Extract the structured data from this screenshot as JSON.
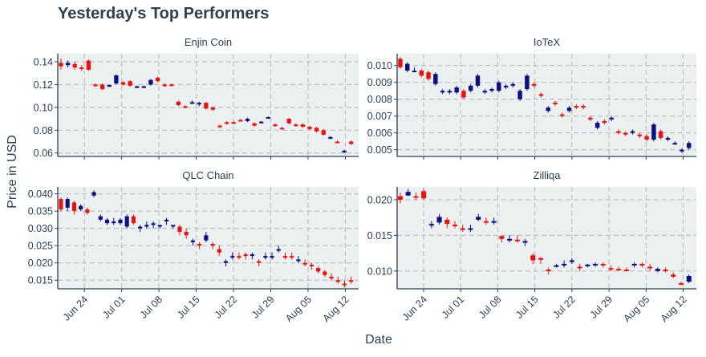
{
  "title": "Yesterday's Top Performers",
  "xlabel": "Date",
  "ylabel": "Price in USD",
  "colors": {
    "up": "#0a0f82",
    "down": "#e8130e",
    "panel_bg": "#ecf0f1",
    "text": "#2a3f54"
  },
  "x_ticks": [
    "Jun 24",
    "Jul 01",
    "Jul 08",
    "Jul 15",
    "Jul 22",
    "Jul 29",
    "Aug 05",
    "Aug 12"
  ],
  "chart_data": [
    {
      "type": "candlestick",
      "title": "Enjin Coin",
      "x_start": "2019-06-19",
      "x_range_days": [
        0,
        56.5
      ],
      "ylim": [
        0.057,
        0.147
      ],
      "y_ticks": [
        0.06,
        0.08,
        0.1,
        0.12,
        0.14
      ],
      "y_tick_labels": [
        "0.06",
        "0.08",
        "0.10",
        "0.12",
        "0.14"
      ],
      "candles": [
        [
          0.139,
          0.136,
          0.143,
          0.133
        ],
        [
          0.137,
          0.139,
          0.141,
          0.135
        ],
        [
          0.138,
          0.135,
          0.14,
          0.133
        ],
        [
          0.135,
          0.134,
          0.137,
          0.132
        ],
        [
          0.141,
          0.133,
          0.142,
          0.132
        ],
        [
          0.12,
          0.1195,
          0.121,
          0.118
        ],
        [
          0.12,
          0.116,
          0.121,
          0.115
        ],
        [
          0.119,
          0.1195,
          0.12,
          0.118
        ],
        [
          0.121,
          0.128,
          0.129,
          0.12
        ],
        [
          0.122,
          0.12,
          0.123,
          0.119
        ],
        [
          0.123,
          0.119,
          0.124,
          0.118
        ],
        [
          0.118,
          0.1185,
          0.119,
          0.117
        ],
        [
          0.118,
          0.1185,
          0.119,
          0.117
        ],
        [
          0.12,
          0.124,
          0.125,
          0.119
        ],
        [
          0.126,
          0.123,
          0.127,
          0.122
        ],
        [
          0.12,
          0.119,
          0.121,
          0.118
        ],
        [
          0.12,
          0.1195,
          0.121,
          0.119
        ],
        [
          0.105,
          0.102,
          0.106,
          0.101
        ],
        [
          0.101,
          0.1,
          0.102,
          0.099
        ],
        [
          0.104,
          0.1045,
          0.106,
          0.103
        ],
        [
          0.103,
          0.104,
          0.105,
          0.101
        ],
        [
          0.104,
          0.099,
          0.105,
          0.098
        ],
        [
          0.1,
          0.098,
          0.101,
          0.097
        ],
        [
          0.084,
          0.083,
          0.085,
          0.082
        ],
        [
          0.087,
          0.086,
          0.088,
          0.085
        ],
        [
          0.087,
          0.0865,
          0.088,
          0.086
        ],
        [
          0.089,
          0.0885,
          0.09,
          0.088
        ],
        [
          0.088,
          0.09,
          0.091,
          0.087
        ],
        [
          0.086,
          0.084,
          0.087,
          0.083
        ],
        [
          0.0865,
          0.0875,
          0.088,
          0.086
        ],
        [
          0.0905,
          0.0915,
          0.092,
          0.09
        ],
        [
          0.085,
          0.0845,
          0.086,
          0.083
        ],
        [
          0.082,
          0.0815,
          0.083,
          0.081
        ],
        [
          0.09,
          0.086,
          0.091,
          0.085
        ],
        [
          0.085,
          0.084,
          0.086,
          0.083
        ],
        [
          0.085,
          0.083,
          0.086,
          0.082
        ],
        [
          0.083,
          0.081,
          0.084,
          0.08
        ],
        [
          0.082,
          0.079,
          0.083,
          0.078
        ],
        [
          0.08,
          0.076,
          0.081,
          0.075
        ],
        [
          0.073,
          0.074,
          0.075,
          0.072
        ],
        [
          0.07,
          0.0695,
          0.071,
          0.069
        ],
        [
          0.0615,
          0.062,
          0.063,
          0.06
        ],
        [
          0.07,
          0.068,
          0.071,
          0.067
        ]
      ]
    },
    {
      "type": "candlestick",
      "title": "IoTeX",
      "x_start": "2019-06-19",
      "x_range_days": [
        0,
        56.5
      ],
      "ylim": [
        0.0046,
        0.0107
      ],
      "y_ticks": [
        0.005,
        0.006,
        0.007,
        0.008,
        0.009,
        0.01
      ],
      "y_tick_labels": [
        "0.005",
        "0.006",
        "0.007",
        "0.008",
        "0.009",
        "0.010"
      ],
      "candles": [
        [
          0.0104,
          0.0099,
          0.0105,
          0.0098
        ],
        [
          0.0097,
          0.0101,
          0.0102,
          0.0096
        ],
        [
          0.0097,
          0.0097,
          0.0099,
          0.0096
        ],
        [
          0.0097,
          0.0094,
          0.0098,
          0.0093
        ],
        [
          0.0096,
          0.0092,
          0.0097,
          0.0091
        ],
        [
          0.0089,
          0.0095,
          0.0096,
          0.0088
        ],
        [
          0.0084,
          0.0085,
          0.0086,
          0.0083
        ],
        [
          0.0084,
          0.0085,
          0.0086,
          0.0083
        ],
        [
          0.0084,
          0.0087,
          0.0088,
          0.0083
        ],
        [
          0.0085,
          0.0081,
          0.0086,
          0.008
        ],
        [
          0.0085,
          0.0088,
          0.0089,
          0.0084
        ],
        [
          0.0088,
          0.0094,
          0.0095,
          0.0087
        ],
        [
          0.0084,
          0.0085,
          0.0086,
          0.0083
        ],
        [
          0.0085,
          0.0086,
          0.0087,
          0.0084
        ],
        [
          0.0085,
          0.009,
          0.0091,
          0.0084
        ],
        [
          0.0087,
          0.0088,
          0.0089,
          0.0086
        ],
        [
          0.0088,
          0.0089,
          0.009,
          0.0087
        ],
        [
          0.008,
          0.0085,
          0.0086,
          0.0079
        ],
        [
          0.0086,
          0.0094,
          0.0095,
          0.0085
        ],
        [
          0.0089,
          0.0088,
          0.009,
          0.0087
        ],
        [
          0.0083,
          0.0082,
          0.0084,
          0.0081
        ],
        [
          0.0073,
          0.0075,
          0.0076,
          0.0072
        ],
        [
          0.0078,
          0.0077,
          0.0079,
          0.0076
        ],
        [
          0.0071,
          0.007,
          0.0072,
          0.0069
        ],
        [
          0.0073,
          0.0075,
          0.0076,
          0.0072
        ],
        [
          0.0076,
          0.0075,
          0.0077,
          0.0074
        ],
        [
          0.0076,
          0.0075,
          0.0077,
          0.0074
        ],
        [
          0.0069,
          0.0068,
          0.007,
          0.0067
        ],
        [
          0.0063,
          0.0066,
          0.0067,
          0.0062
        ],
        [
          0.0067,
          0.0066,
          0.0068,
          0.0065
        ],
        [
          0.0068,
          0.0069,
          0.007,
          0.0067
        ],
        [
          0.0061,
          0.006,
          0.0062,
          0.0059
        ],
        [
          0.006,
          0.0059,
          0.0061,
          0.0058
        ],
        [
          0.006,
          0.0061,
          0.0062,
          0.0059
        ],
        [
          0.0059,
          0.0058,
          0.006,
          0.0057
        ],
        [
          0.0058,
          0.0056,
          0.0059,
          0.0055
        ],
        [
          0.0056,
          0.0065,
          0.0066,
          0.0055
        ],
        [
          0.0061,
          0.0057,
          0.0062,
          0.0056
        ],
        [
          0.0056,
          0.0057,
          0.0058,
          0.0055
        ],
        [
          0.0054,
          0.0054,
          0.0055,
          0.0053
        ],
        [
          0.0049,
          0.005,
          0.0051,
          0.0048
        ],
        [
          0.0051,
          0.0054,
          0.0055,
          0.005
        ]
      ]
    },
    {
      "type": "candlestick",
      "title": "QLC Chain",
      "x_start": "2019-06-19",
      "x_range_days": [
        0,
        56.5
      ],
      "ylim": [
        0.0125,
        0.042
      ],
      "y_ticks": [
        0.015,
        0.02,
        0.025,
        0.03,
        0.035,
        0.04
      ],
      "y_tick_labels": [
        "0.015",
        "0.020",
        "0.025",
        "0.030",
        "0.035",
        "0.040"
      ],
      "candles": [
        [
          0.0385,
          0.0355,
          0.039,
          0.035
        ],
        [
          0.036,
          0.0385,
          0.039,
          0.035
        ],
        [
          0.0375,
          0.035,
          0.038,
          0.034
        ],
        [
          0.0355,
          0.0365,
          0.037,
          0.035
        ],
        [
          0.0355,
          0.0345,
          0.036,
          0.034
        ],
        [
          0.0395,
          0.0405,
          0.041,
          0.039
        ],
        [
          0.0325,
          0.0335,
          0.034,
          0.032
        ],
        [
          0.0315,
          0.0325,
          0.033,
          0.031
        ],
        [
          0.0315,
          0.032,
          0.033,
          0.031
        ],
        [
          0.0315,
          0.0325,
          0.033,
          0.031
        ],
        [
          0.0305,
          0.0335,
          0.034,
          0.03
        ],
        [
          0.0335,
          0.0315,
          0.034,
          0.031
        ],
        [
          0.03,
          0.0305,
          0.031,
          0.029
        ],
        [
          0.0305,
          0.031,
          0.032,
          0.03
        ],
        [
          0.031,
          0.0315,
          0.032,
          0.03
        ],
        [
          0.0305,
          0.031,
          0.031,
          0.03
        ],
        [
          0.032,
          0.0325,
          0.033,
          0.031
        ],
        [
          0.0305,
          0.031,
          0.031,
          0.03
        ],
        [
          0.0305,
          0.029,
          0.031,
          0.028
        ],
        [
          0.029,
          0.028,
          0.03,
          0.027
        ],
        [
          0.026,
          0.0265,
          0.027,
          0.025
        ],
        [
          0.0255,
          0.025,
          0.026,
          0.024
        ],
        [
          0.0265,
          0.028,
          0.029,
          0.026
        ],
        [
          0.0255,
          0.025,
          0.026,
          0.024
        ],
        [
          0.024,
          0.023,
          0.025,
          0.022
        ],
        [
          0.02,
          0.0205,
          0.021,
          0.019
        ],
        [
          0.0215,
          0.022,
          0.023,
          0.021
        ],
        [
          0.022,
          0.0215,
          0.023,
          0.021
        ],
        [
          0.0225,
          0.022,
          0.023,
          0.021
        ],
        [
          0.022,
          0.0225,
          0.023,
          0.021
        ],
        [
          0.0205,
          0.02,
          0.021,
          0.019
        ],
        [
          0.0215,
          0.022,
          0.023,
          0.021
        ],
        [
          0.0215,
          0.022,
          0.023,
          0.021
        ],
        [
          0.0235,
          0.024,
          0.025,
          0.023
        ],
        [
          0.022,
          0.0215,
          0.023,
          0.021
        ],
        [
          0.022,
          0.0215,
          0.023,
          0.021
        ],
        [
          0.0205,
          0.021,
          0.022,
          0.02
        ],
        [
          0.02,
          0.0195,
          0.021,
          0.019
        ],
        [
          0.0195,
          0.019,
          0.02,
          0.018
        ],
        [
          0.0185,
          0.0175,
          0.019,
          0.017
        ],
        [
          0.0175,
          0.0165,
          0.018,
          0.016
        ],
        [
          0.016,
          0.0155,
          0.017,
          0.015
        ],
        [
          0.015,
          0.0145,
          0.016,
          0.014
        ],
        [
          0.014,
          0.0138,
          0.015,
          0.013
        ],
        [
          0.015,
          0.0148,
          0.016,
          0.014
        ]
      ]
    },
    {
      "type": "candlestick",
      "title": "Zilliqa",
      "x_start": "2019-06-19",
      "x_range_days": [
        0,
        56.5
      ],
      "ylim": [
        0.0075,
        0.0218
      ],
      "y_ticks": [
        0.01,
        0.015,
        0.02
      ],
      "y_tick_labels": [
        "0.010",
        "0.015",
        "0.020"
      ],
      "candles": [
        [
          0.0205,
          0.02,
          0.021,
          0.0195
        ],
        [
          0.0206,
          0.0211,
          0.0215,
          0.0205
        ],
        [
          0.0205,
          0.0204,
          0.021,
          0.02
        ],
        [
          0.0212,
          0.0202,
          0.0215,
          0.02
        ],
        [
          0.0164,
          0.0166,
          0.017,
          0.016
        ],
        [
          0.0168,
          0.0176,
          0.018,
          0.0165
        ],
        [
          0.0172,
          0.0166,
          0.0175,
          0.016
        ],
        [
          0.0165,
          0.0163,
          0.017,
          0.016
        ],
        [
          0.016,
          0.0158,
          0.0165,
          0.0155
        ],
        [
          0.0158,
          0.016,
          0.0165,
          0.0155
        ],
        [
          0.0172,
          0.0176,
          0.018,
          0.017
        ],
        [
          0.017,
          0.0168,
          0.0175,
          0.0165
        ],
        [
          0.0168,
          0.017,
          0.0175,
          0.0165
        ],
        [
          0.0149,
          0.0145,
          0.015,
          0.014
        ],
        [
          0.0143,
          0.0145,
          0.015,
          0.014
        ],
        [
          0.0144,
          0.0143,
          0.015,
          0.014
        ],
        [
          0.014,
          0.0142,
          0.0145,
          0.0135
        ],
        [
          0.0122,
          0.0115,
          0.0125,
          0.011
        ],
        [
          0.0118,
          0.0116,
          0.012,
          0.011
        ],
        [
          0.0102,
          0.01,
          0.0105,
          0.0095
        ],
        [
          0.0106,
          0.0108,
          0.011,
          0.0105
        ],
        [
          0.0108,
          0.011,
          0.0115,
          0.0105
        ],
        [
          0.0113,
          0.0115,
          0.0118,
          0.011
        ],
        [
          0.0106,
          0.0104,
          0.011,
          0.01
        ],
        [
          0.0107,
          0.0109,
          0.011,
          0.0105
        ],
        [
          0.0109,
          0.011,
          0.0112,
          0.0106
        ],
        [
          0.011,
          0.0109,
          0.0112,
          0.0105
        ],
        [
          0.0104,
          0.0102,
          0.0108,
          0.01
        ],
        [
          0.0103,
          0.0101,
          0.0106,
          0.01
        ],
        [
          0.0102,
          0.0101,
          0.0105,
          0.01
        ],
        [
          0.0108,
          0.011,
          0.0112,
          0.0105
        ],
        [
          0.011,
          0.0108,
          0.0112,
          0.0105
        ],
        [
          0.0106,
          0.0104,
          0.011,
          0.01
        ],
        [
          0.01,
          0.0103,
          0.0105,
          0.0098
        ],
        [
          0.0102,
          0.01,
          0.0105,
          0.0098
        ],
        [
          0.0095,
          0.0092,
          0.0098,
          0.009
        ],
        [
          0.0083,
          0.0081,
          0.0085,
          0.008
        ],
        [
          0.0085,
          0.0093,
          0.0095,
          0.0083
        ]
      ]
    }
  ]
}
